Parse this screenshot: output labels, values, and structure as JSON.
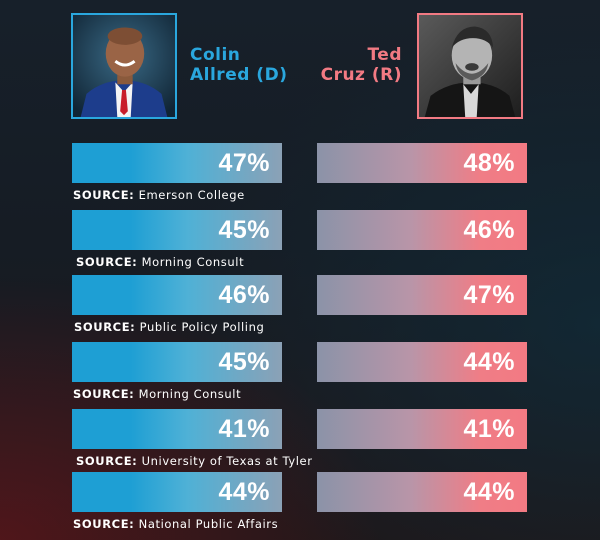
{
  "candidates": {
    "dem": {
      "first": "Colin",
      "last_party": "Allred (D)",
      "color": "#2aa7de"
    },
    "rep": {
      "first": "Ted",
      "last_party": "Cruz (R)",
      "color": "#f27a83"
    }
  },
  "source_prefix": "SOURCE:",
  "chart_data": {
    "type": "bar",
    "categories": [
      "Emerson College",
      "Morning Consult",
      "Public Policy Polling",
      "Morning Consult",
      "University of Texas at Tyler",
      "National Public Affairs"
    ],
    "series": [
      {
        "name": "Colin Allred (D)",
        "values": [
          47,
          45,
          46,
          45,
          41,
          44
        ]
      },
      {
        "name": "Ted Cruz (R)",
        "values": [
          48,
          46,
          47,
          44,
          41,
          44
        ]
      }
    ],
    "labels_dem": [
      "47%",
      "45%",
      "46%",
      "45%",
      "41%",
      "44%"
    ],
    "labels_rep": [
      "48%",
      "46%",
      "47%",
      "44%",
      "41%",
      "44%"
    ]
  }
}
